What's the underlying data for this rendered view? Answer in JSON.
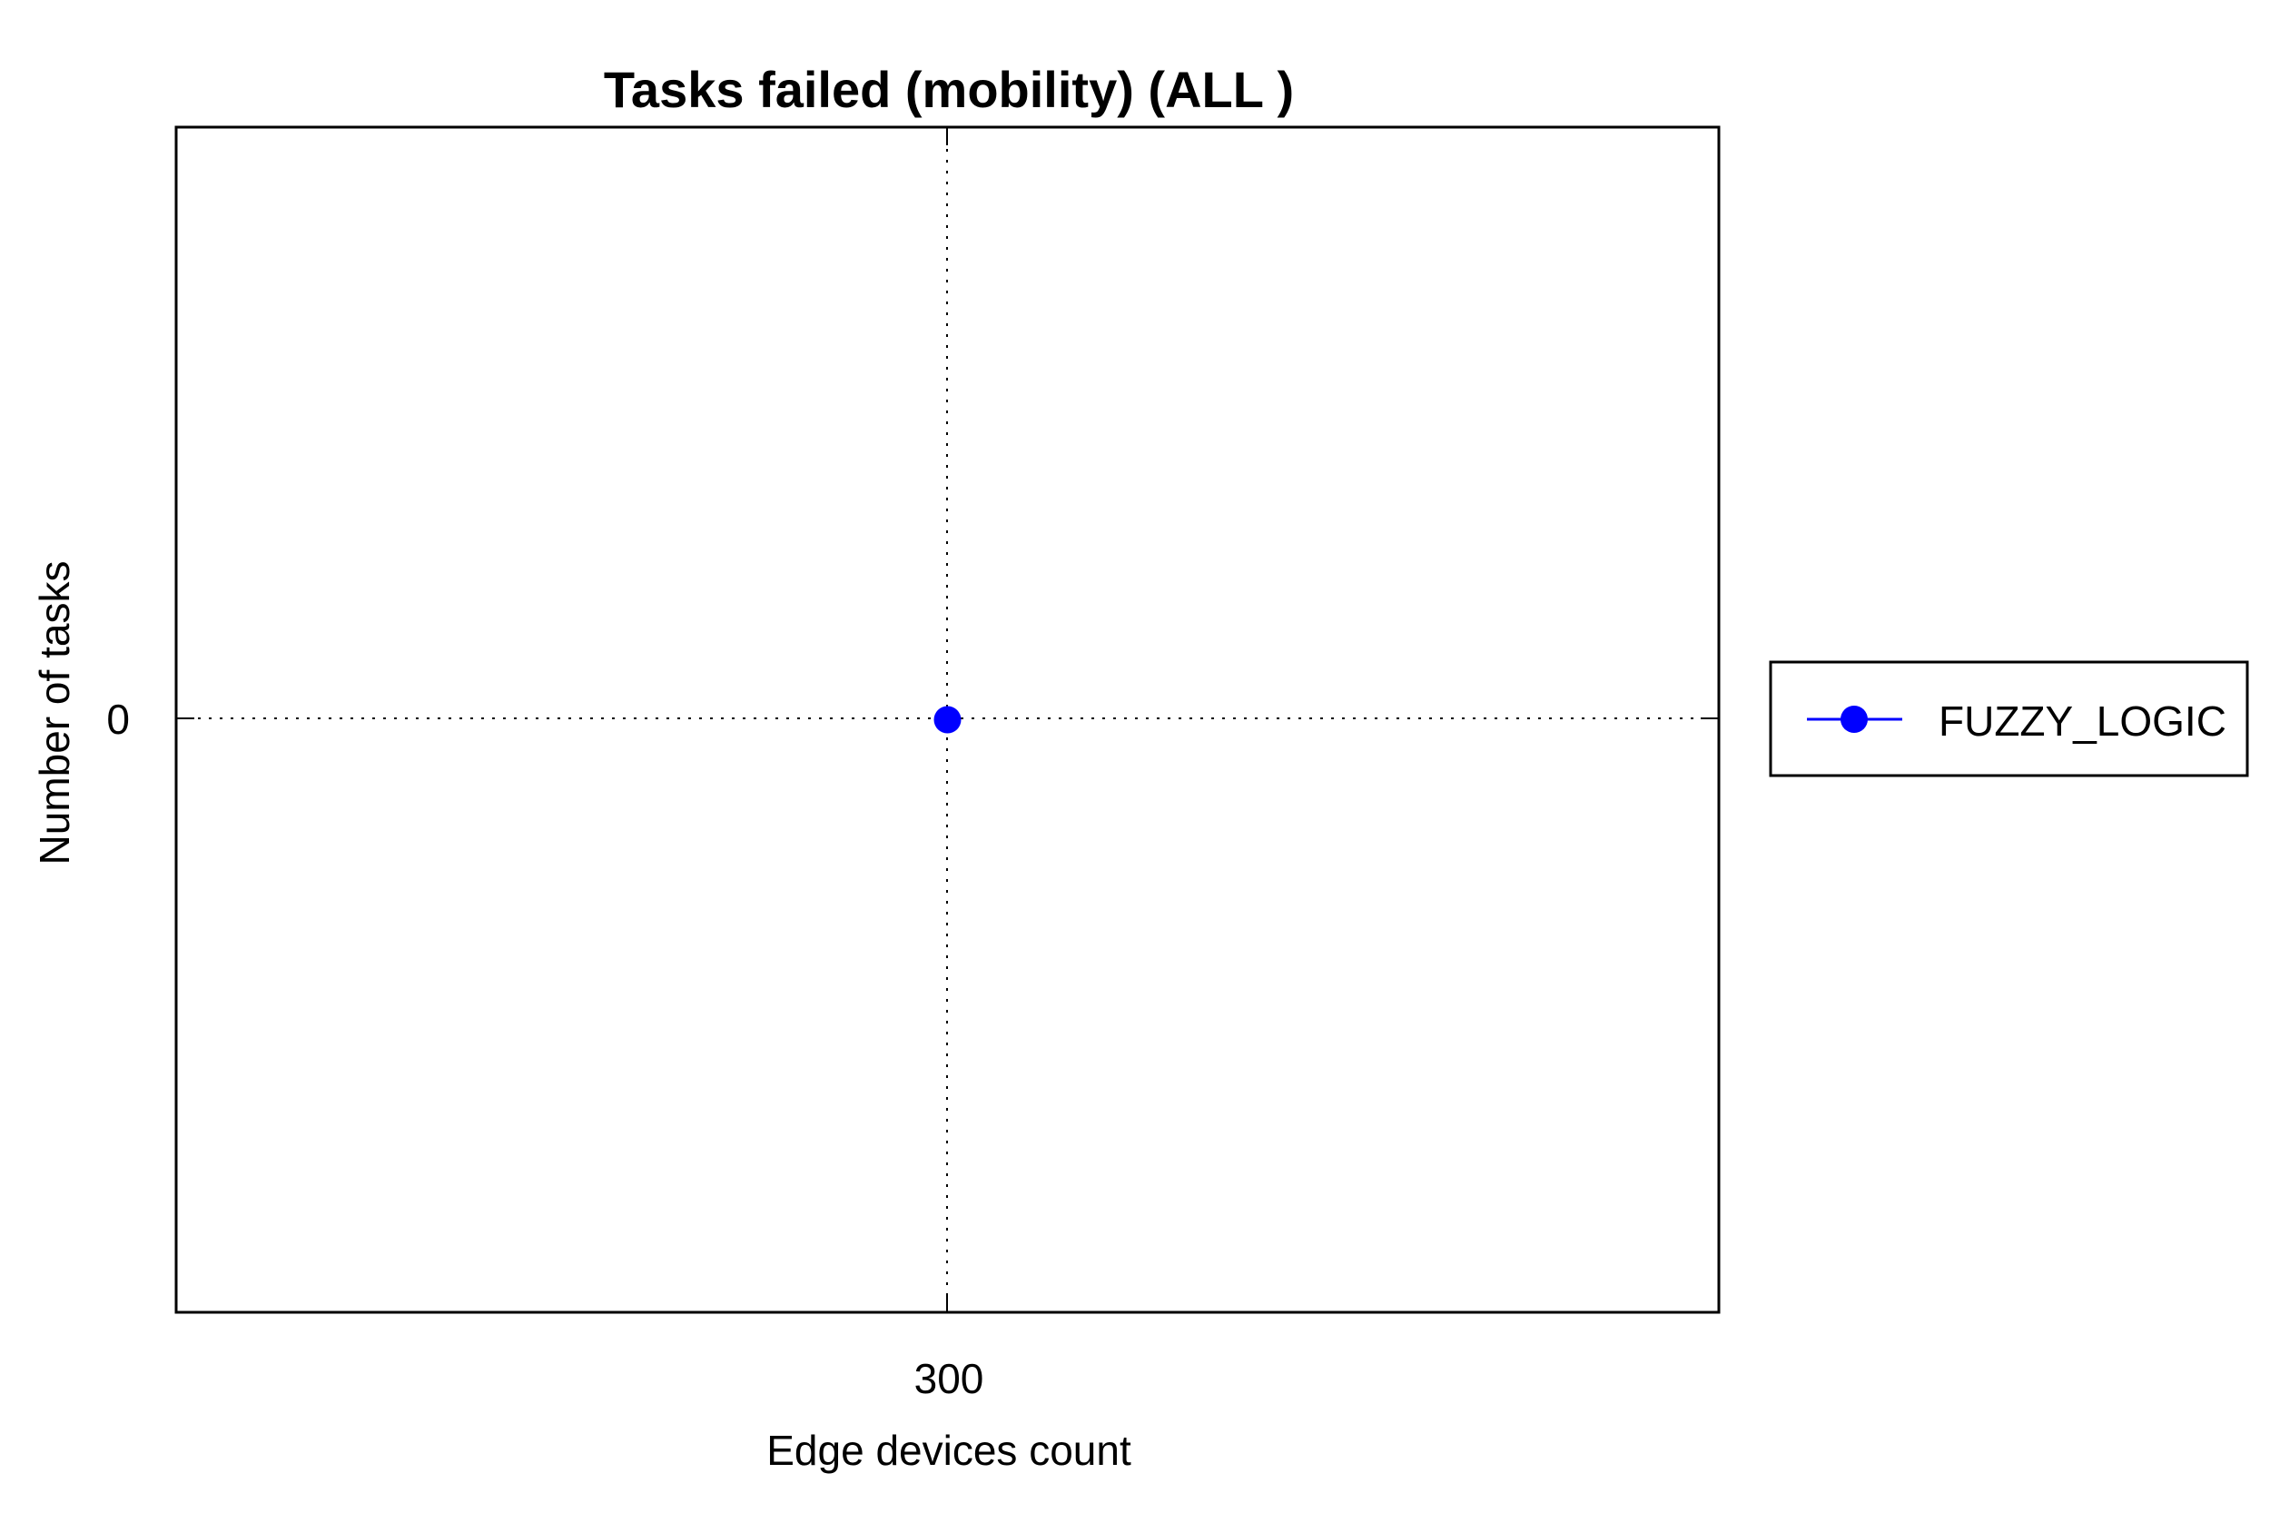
{
  "chart_data": {
    "type": "line",
    "title": "Tasks failed (mobility) (ALL )",
    "xlabel": "Edge devices count",
    "ylabel": "Number of tasks",
    "x_ticks": [
      "300"
    ],
    "y_ticks": [
      "0"
    ],
    "x": [
      300
    ],
    "series": [
      {
        "name": "FUZZY_LOGIC",
        "values": [
          0
        ],
        "color": "#0000ff",
        "marker": "circle"
      }
    ],
    "grid": true,
    "legend": "right"
  }
}
